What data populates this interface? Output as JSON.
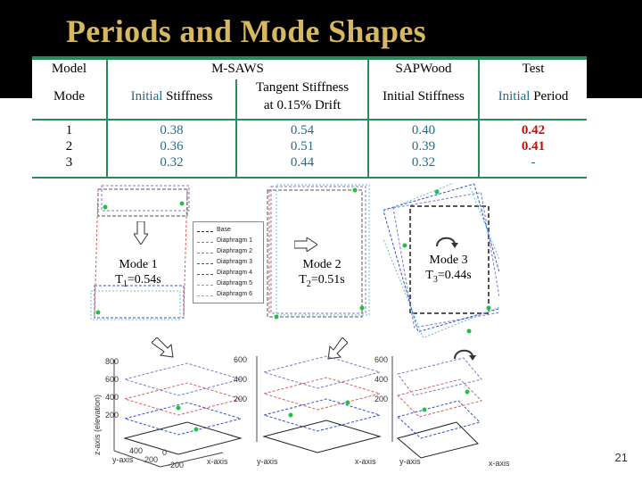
{
  "slide": {
    "title": "Periods and Mode Shapes",
    "page_number": "21"
  },
  "table": {
    "header1": {
      "model": "Model",
      "msaws": "M-SAWS",
      "sapwood": "SAPWood",
      "test": "Test"
    },
    "header2": {
      "mode": "Mode",
      "initial_stiffness_prefix": "Initial",
      "initial_stiffness_suffix": " Stiffness",
      "tangent_line1": "Tangent Stiffness",
      "tangent_line2": "at 0.15% Drift",
      "sap_initial": "Initial Stiffness",
      "test_prefix": "Initial",
      "test_suffix": " Period"
    },
    "rows": [
      {
        "mode": "1",
        "msaws_initial": "0.38",
        "msaws_tangent": "0.54",
        "sapwood": "0.40",
        "test": "0.42"
      },
      {
        "mode": "2",
        "msaws_initial": "0.36",
        "msaws_tangent": "0.51",
        "sapwood": "0.39",
        "test": "0.41"
      },
      {
        "mode": "3",
        "msaws_initial": "0.32",
        "msaws_tangent": "0.44",
        "sapwood": "0.32",
        "test": "-"
      }
    ]
  },
  "modes": [
    {
      "name": "Mode 1",
      "period_prefix": "T",
      "period_sub": "1",
      "period_value": "=0.54s"
    },
    {
      "name": "Mode 2",
      "period_prefix": "T",
      "period_sub": "2",
      "period_value": "=0.51s"
    },
    {
      "name": "Mode 3",
      "period_prefix": "T",
      "period_sub": "3",
      "period_value": "=0.44s"
    }
  ],
  "legend": {
    "items": [
      {
        "label": "Base",
        "color": "#222222"
      },
      {
        "label": "Diaphragm 1",
        "color": "#7a7ac8"
      },
      {
        "label": "Diaphragm 2",
        "color": "#d86060"
      },
      {
        "label": "Diaphragm 3",
        "color": "#555555"
      },
      {
        "label": "Diaphragm 4",
        "color": "#3050d0"
      },
      {
        "label": "Diaphragm 5",
        "color": "#e08080"
      },
      {
        "label": "Diaphragm 6",
        "color": "#60c0d0"
      }
    ]
  },
  "plot3d": {
    "zlabel": "z-axis (elevation)",
    "ylabel": "y-axis",
    "xlabel": "x-axis",
    "z_ticks": [
      "800",
      "600",
      "400",
      "200"
    ],
    "xy_ticks": [
      "400",
      "200",
      "0",
      "-200"
    ],
    "p2_ticks": [
      "600",
      "400",
      "200"
    ],
    "p3_ticks": [
      "600",
      "400",
      "200"
    ]
  },
  "colors": {
    "title": "#d6b863",
    "table_rule": "#2b8a5a",
    "teal": "#1f6e8c",
    "test_red": "#c01010"
  }
}
